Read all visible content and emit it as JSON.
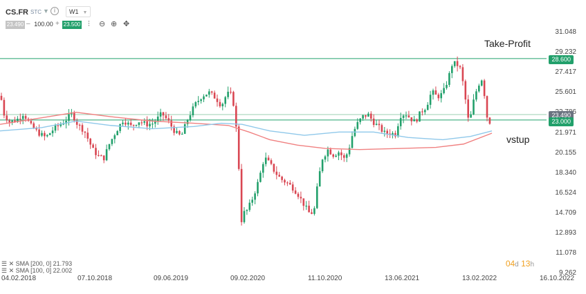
{
  "header": {
    "symbol": "CS.FR",
    "exchange": "STC",
    "info_icon": "info-icon",
    "timeframe": "W1"
  },
  "trade": {
    "bid": "23.490",
    "quantity": "100.00",
    "ask": "23.500",
    "minus": "–",
    "plus": "+"
  },
  "toolbar": {
    "icons": [
      "candle-type-icon",
      "zoom-out-icon",
      "zoom-in-icon",
      "crosshair-icon"
    ]
  },
  "price_axis": [
    "31.048",
    "29.232",
    "27.417",
    "25.601",
    "23.786",
    "21.971",
    "20.155",
    "18.340",
    "16.524",
    "14.709",
    "12.893",
    "11.078",
    "9.262"
  ],
  "date_axis": [
    "04.02.2018",
    "07.10.2018",
    "09.06.2019",
    "09.02.2020",
    "11.10.2020",
    "13.06.2021",
    "13.02.2022",
    "16.10.2022"
  ],
  "levels": {
    "take_profit": {
      "value": "28.600",
      "color": "#22a06b"
    },
    "entry": {
      "value": "23.000",
      "color": "#22a06b"
    },
    "current": {
      "value": "23.490",
      "color": "#6b7380"
    }
  },
  "annotations": {
    "take_profit": "Take-Profit",
    "entry": "vstup"
  },
  "indicators": {
    "sma200": "SMA [200, 0] 21.793",
    "sma100": "SMA [100, 0] 22.002"
  },
  "timer": {
    "days": "04",
    "d": "d",
    "hours": "13",
    "h": "h"
  },
  "colors": {
    "up": "#22a06b",
    "down": "#d94652",
    "sma200": "#f08080",
    "sma100": "#8fc8ea",
    "grid": "#eeeeee"
  }
}
